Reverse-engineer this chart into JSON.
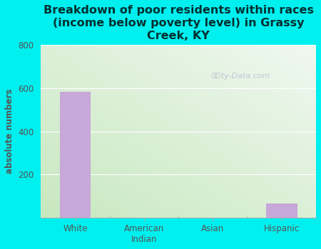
{
  "categories": [
    "White",
    "American\nIndian",
    "Asian",
    "Hispanic"
  ],
  "values": [
    585,
    0,
    0,
    65
  ],
  "bar_color": "#c8a8d8",
  "background_color": "#00efef",
  "plot_bg_top_color": "#f0f8f0",
  "plot_bg_bottom_color": "#c8e8c0",
  "title": "Breakdown of poor residents within races\n(income below poverty level) in Grassy\nCreek, KY",
  "ylabel": "absolute numbers",
  "ylim": [
    0,
    800
  ],
  "yticks": [
    0,
    200,
    400,
    600,
    800
  ],
  "title_color": "#003030",
  "label_color": "#555555",
  "tick_color": "#555555",
  "watermark": "City-Data.com",
  "title_fontsize": 11.5,
  "ylabel_fontsize": 8.5,
  "tick_fontsize": 8.5
}
